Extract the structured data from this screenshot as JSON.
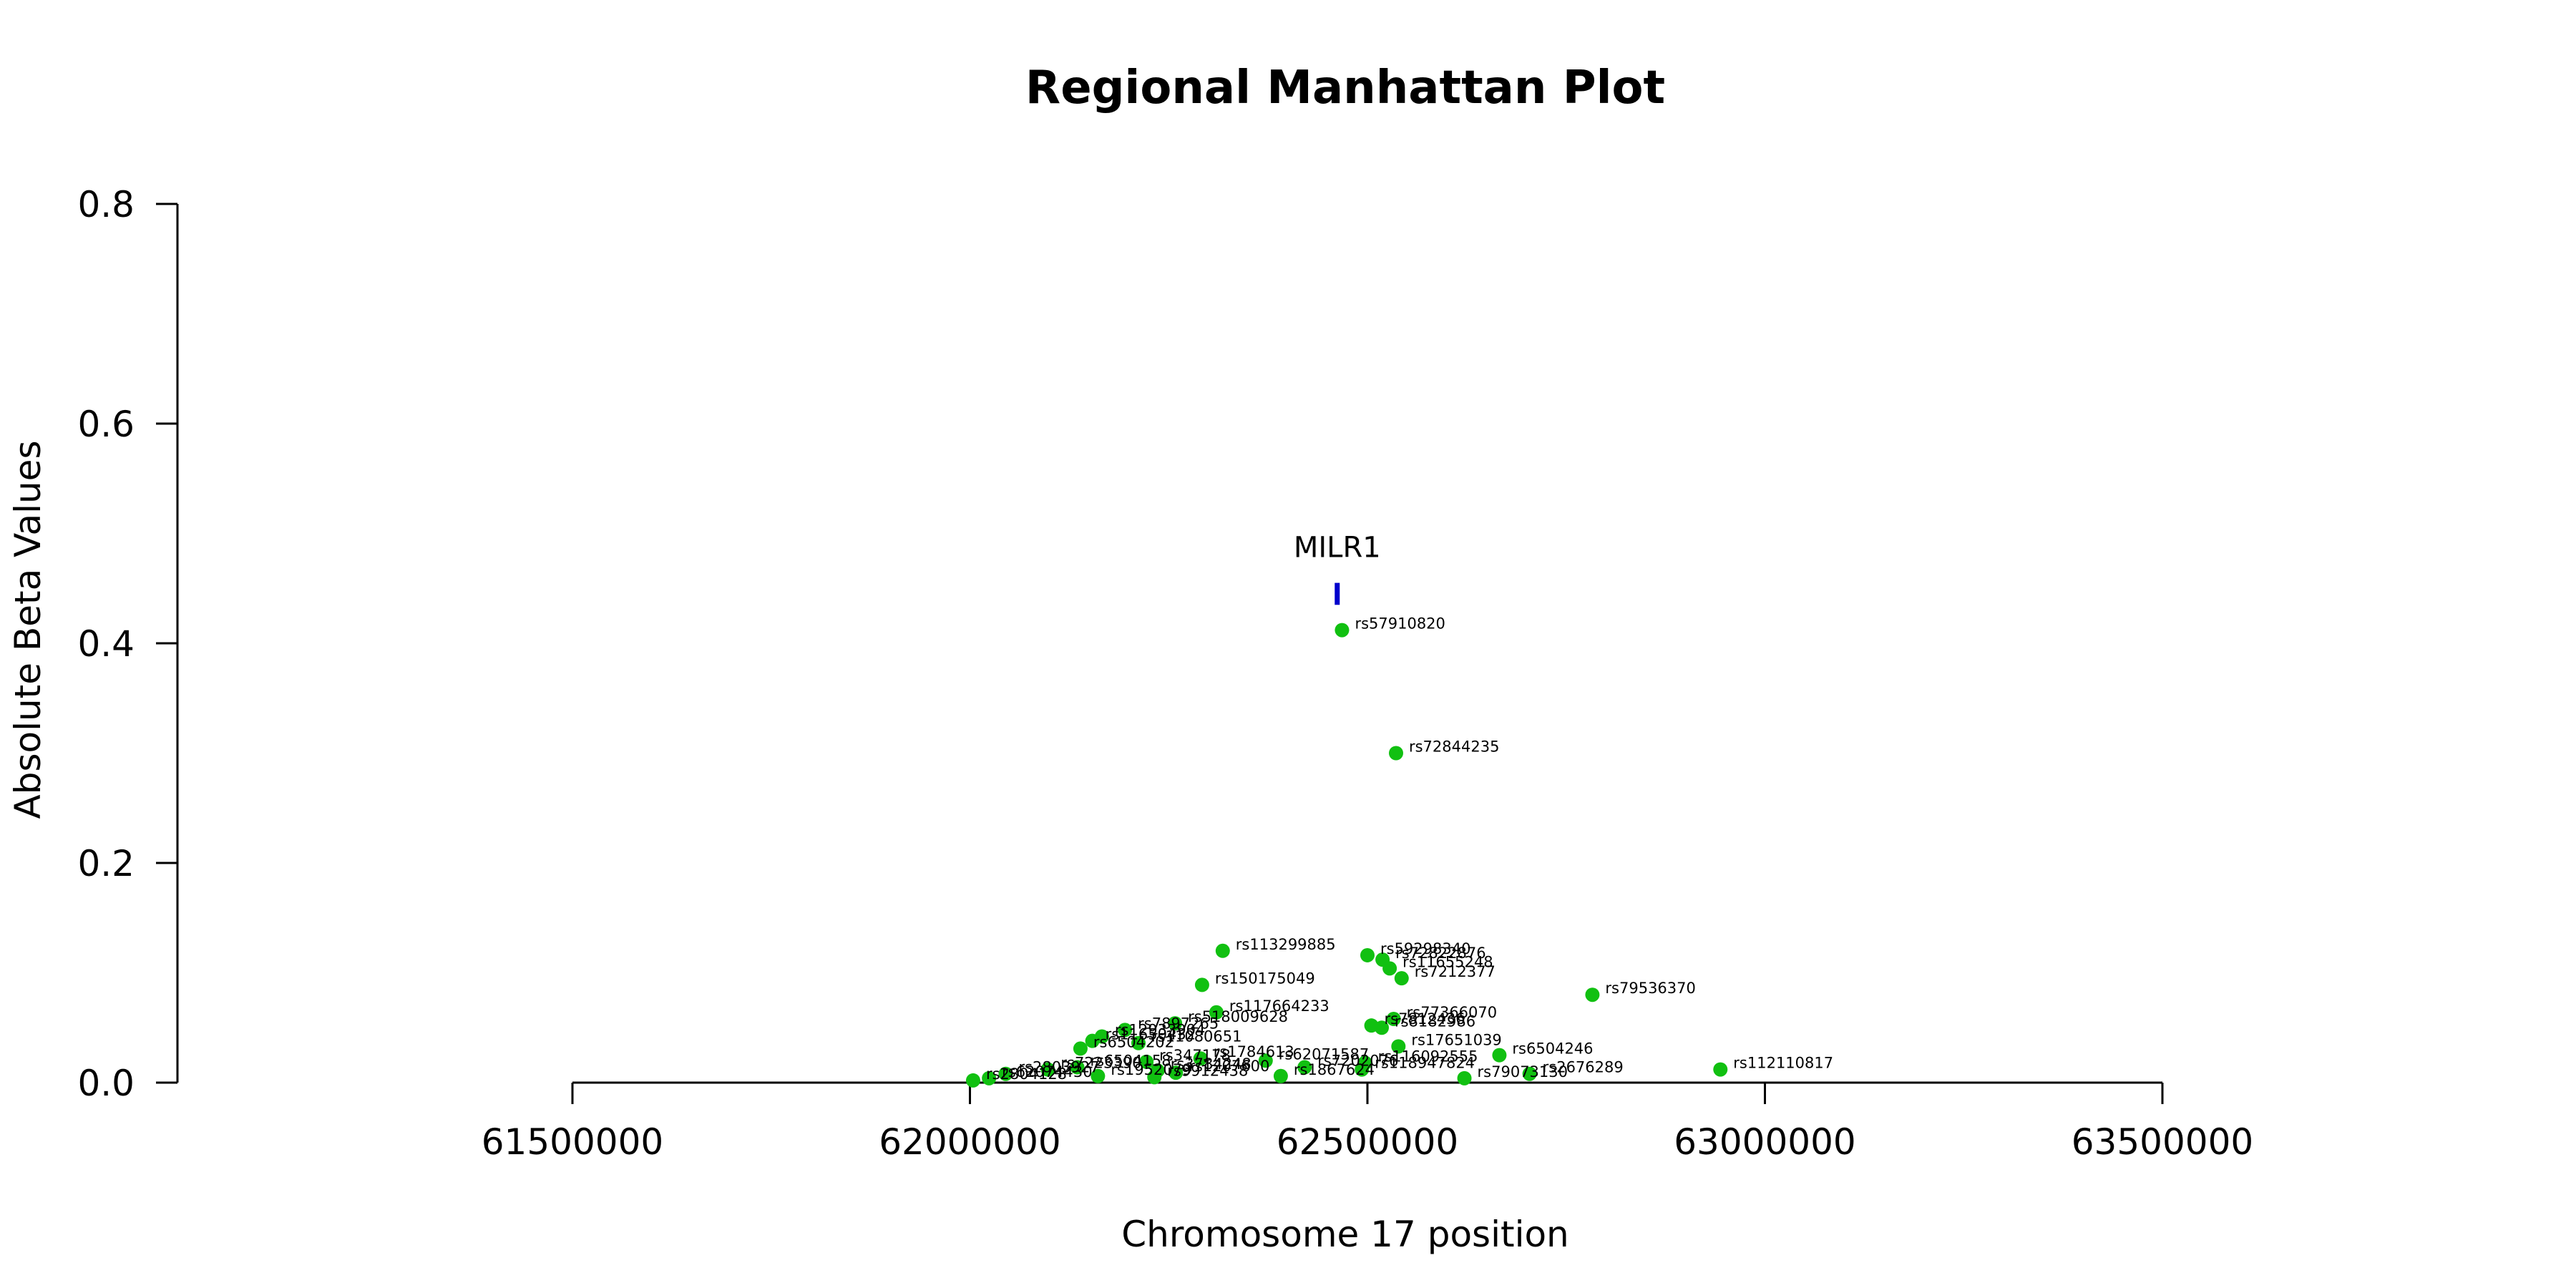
{
  "chart_data": {
    "type": "scatter",
    "title": "Regional Manhattan Plot",
    "xlabel": "Chromosome 17 position",
    "ylabel": "Absolute Beta Values",
    "xlim": [
      61500000,
      63500000
    ],
    "ylim": [
      0,
      0.8
    ],
    "xticks": [
      61500000,
      62000000,
      62500000,
      63000000,
      63500000
    ],
    "yticks": [
      0.0,
      0.2,
      0.4,
      0.6,
      0.8
    ],
    "xtick_labels": [
      "61500000",
      "62000000",
      "62500000",
      "63000000",
      "63500000"
    ],
    "ytick_labels": [
      "0.0",
      "0.2",
      "0.4",
      "0.6",
      "0.8"
    ],
    "colors": {
      "points": "#11c011",
      "gene": "#0000cc",
      "axis": "#000000"
    },
    "gene": {
      "name": "MILR1",
      "x": 62462000,
      "y_range": [
        0.435,
        0.455
      ]
    },
    "points": [
      {
        "id": "rs57910820",
        "x": 62468000,
        "y": 0.412
      },
      {
        "id": "rs72844235",
        "x": 62536000,
        "y": 0.3
      },
      {
        "id": "rs113299885",
        "x": 62318000,
        "y": 0.12
      },
      {
        "id": "rs59298340",
        "x": 62500000,
        "y": 0.116
      },
      {
        "id": "rs72822876",
        "x": 62519000,
        "y": 0.112
      },
      {
        "id": "rs11655248",
        "x": 62528000,
        "y": 0.104
      },
      {
        "id": "rs7212377",
        "x": 62543000,
        "y": 0.095
      },
      {
        "id": "rs150175049",
        "x": 62292000,
        "y": 0.089
      },
      {
        "id": "rs79536370",
        "x": 62783000,
        "y": 0.08
      },
      {
        "id": "rs117664233",
        "x": 62310000,
        "y": 0.064
      },
      {
        "id": "rs77366070",
        "x": 62533000,
        "y": 0.058
      },
      {
        "id": "rs7812436",
        "x": 62505000,
        "y": 0.052
      },
      {
        "id": "rs8182986",
        "x": 62518000,
        "y": 0.05
      },
      {
        "id": "rs17651039",
        "x": 62539000,
        "y": 0.033
      },
      {
        "id": "rs6504246",
        "x": 62666000,
        "y": 0.025
      },
      {
        "id": "rs112110817",
        "x": 62944000,
        "y": 0.012
      },
      {
        "id": "rs79073130",
        "x": 62622000,
        "y": 0.004
      },
      {
        "id": "rs2676289",
        "x": 62704000,
        "y": 0.008
      },
      {
        "id": "rs1867624",
        "x": 62391000,
        "y": 0.006
      },
      {
        "id": "rs7897265",
        "x": 62195000,
        "y": 0.048
      },
      {
        "id": "rs518009628",
        "x": 62258000,
        "y": 0.054
      },
      {
        "id": "rs11080651",
        "x": 62212000,
        "y": 0.036
      },
      {
        "id": "rs12933904",
        "x": 62166000,
        "y": 0.042
      },
      {
        "id": "rs62071587",
        "x": 62372000,
        "y": 0.02
      },
      {
        "id": "rs116092555",
        "x": 62497000,
        "y": 0.018
      },
      {
        "id": "rs118947824",
        "x": 62493000,
        "y": 0.012
      },
      {
        "id": "rs347178",
        "x": 62222000,
        "y": 0.019
      },
      {
        "id": "rs1784613",
        "x": 62290000,
        "y": 0.022
      },
      {
        "id": "rs6504158",
        "x": 62135000,
        "y": 0.014
      },
      {
        "id": "rs2803927",
        "x": 62045000,
        "y": 0.008
      },
      {
        "id": "rs2804128",
        "x": 62004000,
        "y": 0.002
      },
      {
        "id": "rs3784248",
        "x": 62236000,
        "y": 0.011
      },
      {
        "id": "rs1207600",
        "x": 62259000,
        "y": 0.009
      },
      {
        "id": "rs7202076",
        "x": 62421000,
        "y": 0.014
      },
      {
        "id": "rs1952079",
        "x": 62161000,
        "y": 0.006
      },
      {
        "id": "rs9912438",
        "x": 62232000,
        "y": 0.005
      },
      {
        "id": "rs6504202",
        "x": 62139000,
        "y": 0.031
      },
      {
        "id": "rs11650432",
        "x": 62154000,
        "y": 0.038
      },
      {
        "id": "rs62074430",
        "x": 62024000,
        "y": 0.004
      },
      {
        "id": "rs7223390",
        "x": 62098000,
        "y": 0.012
      }
    ]
  }
}
